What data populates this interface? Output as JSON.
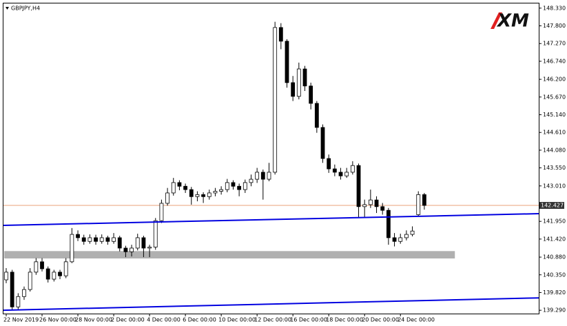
{
  "chart_data": {
    "type": "candlestick",
    "title": "GBPJPY,H4",
    "logo": "XM",
    "categories": [
      "22 Nov 2019",
      null,
      null,
      null,
      null,
      null,
      "26 Nov 00:00",
      null,
      null,
      null,
      null,
      null,
      "28 Nov 00:00",
      null,
      null,
      null,
      null,
      null,
      "2 Dec 00:00",
      null,
      null,
      null,
      null,
      null,
      "4 Dec 00:00",
      null,
      null,
      null,
      null,
      null,
      "6 Dec 00:00",
      null,
      null,
      null,
      null,
      null,
      "10 Dec 00:00",
      null,
      null,
      null,
      null,
      null,
      "12 Dec 00:00",
      null,
      null,
      null,
      null,
      null,
      "16 Dec 00:00",
      null,
      null,
      null,
      null,
      null,
      "18 Dec 00:00",
      null,
      null,
      null,
      null,
      null,
      "20 Dec 00:00",
      null,
      null,
      null,
      null,
      null,
      "24 Dec 00:00",
      null,
      null,
      null,
      null
    ],
    "open": [
      140.2,
      140.43,
      139.39,
      139.7,
      139.91,
      140.43,
      140.74,
      140.53,
      140.22,
      140.43,
      140.32,
      140.74,
      141.56,
      141.46,
      141.35,
      141.46,
      141.35,
      141.46,
      141.35,
      141.46,
      141.15,
      141.04,
      141.15,
      141.46,
      141.15,
      141.18,
      141.97,
      142.49,
      142.8,
      143.11,
      143.0,
      142.9,
      142.69,
      142.75,
      142.69,
      142.8,
      142.85,
      142.9,
      143.11,
      143.0,
      142.9,
      143.11,
      143.21,
      143.42,
      143.21,
      143.42,
      147.75,
      147.34,
      146.1,
      145.69,
      146.51,
      146.0,
      145.48,
      144.76,
      143.83,
      143.52,
      143.42,
      143.31,
      143.42,
      143.62,
      142.39,
      142.45,
      142.59,
      142.39,
      142.28,
      141.46,
      141.35,
      141.46,
      141.56,
      142.15,
      142.75
    ],
    "high": [
      140.55,
      140.5,
      139.8,
      140.0,
      140.55,
      140.85,
      140.85,
      140.6,
      140.5,
      140.5,
      140.85,
      141.75,
      141.68,
      141.55,
      141.56,
      141.55,
      141.56,
      141.52,
      141.6,
      141.52,
      141.22,
      141.25,
      141.58,
      141.52,
      141.25,
      142.05,
      142.6,
      142.95,
      143.25,
      143.18,
      143.08,
      142.98,
      142.85,
      142.82,
      142.9,
      142.95,
      143.0,
      143.22,
      143.18,
      143.08,
      143.2,
      143.35,
      143.55,
      143.5,
      143.7,
      147.92,
      147.88,
      147.4,
      146.3,
      146.7,
      146.6,
      146.1,
      145.55,
      144.85,
      143.95,
      143.65,
      143.55,
      143.55,
      143.75,
      143.68,
      142.6,
      142.9,
      142.7,
      142.5,
      142.35,
      141.6,
      141.58,
      141.68,
      141.8,
      142.85,
      142.8
    ],
    "low": [
      140.1,
      139.29,
      139.3,
      139.6,
      139.85,
      140.35,
      140.45,
      140.12,
      140.15,
      140.22,
      140.25,
      140.7,
      141.36,
      141.25,
      141.28,
      141.25,
      141.28,
      141.25,
      141.28,
      141.05,
      140.88,
      140.9,
      141.08,
      140.88,
      140.88,
      141.1,
      141.9,
      142.42,
      142.72,
      142.88,
      142.8,
      142.45,
      142.55,
      142.5,
      142.6,
      142.7,
      142.75,
      142.82,
      142.9,
      142.7,
      142.8,
      143.0,
      143.1,
      142.6,
      143.15,
      143.35,
      147.1,
      145.95,
      145.55,
      145.6,
      145.85,
      145.3,
      144.6,
      143.7,
      143.4,
      143.3,
      143.2,
      143.25,
      143.35,
      142.05,
      142.05,
      142.35,
      142.2,
      142.15,
      141.25,
      141.2,
      141.28,
      141.38,
      141.5,
      142.1,
      142.3
    ],
    "close": [
      140.43,
      139.39,
      139.7,
      139.91,
      140.43,
      140.74,
      140.53,
      140.22,
      140.43,
      140.32,
      140.74,
      141.56,
      141.46,
      141.35,
      141.46,
      141.35,
      141.46,
      141.35,
      141.46,
      141.15,
      141.04,
      141.15,
      141.46,
      141.15,
      141.18,
      141.97,
      142.49,
      142.8,
      143.11,
      143.0,
      142.9,
      142.69,
      142.75,
      142.69,
      142.8,
      142.85,
      142.9,
      143.11,
      143.0,
      142.9,
      143.11,
      143.21,
      143.42,
      143.21,
      143.42,
      147.75,
      147.34,
      146.1,
      145.69,
      146.51,
      146.0,
      145.48,
      144.76,
      143.83,
      143.52,
      143.42,
      143.31,
      143.42,
      143.62,
      142.39,
      142.45,
      142.59,
      142.39,
      142.28,
      141.46,
      141.35,
      141.46,
      141.56,
      141.66,
      142.75,
      142.427
    ],
    "up_color": "#ffffff",
    "down_color": "#000000",
    "last_price": 142.427,
    "last_price_color": "#e8a07a",
    "trendlines": [
      {
        "color": "#0000e0",
        "start": 141.83,
        "end": 142.18
      },
      {
        "color": "#0000e0",
        "start": 139.29,
        "end": 139.66
      }
    ],
    "zone": {
      "color": "#b0b0b0",
      "top": 141.06,
      "bottom": 140.84,
      "end_index": 75
    },
    "ylim": [
      139.19,
      148.47
    ],
    "yticks": [
      {
        "value": 148.33,
        "label": "148.330"
      },
      {
        "value": 147.8,
        "label": "147.800"
      },
      {
        "value": 147.27,
        "label": "147.270"
      },
      {
        "value": 146.74,
        "label": "146.740"
      },
      {
        "value": 146.2,
        "label": "146.200"
      },
      {
        "value": 145.67,
        "label": "145.670"
      },
      {
        "value": 145.14,
        "label": "145.140"
      },
      {
        "value": 144.61,
        "label": "144.610"
      },
      {
        "value": 144.08,
        "label": "144.080"
      },
      {
        "value": 143.55,
        "label": "143.550"
      },
      {
        "value": 143.01,
        "label": "143.010"
      },
      {
        "value": 141.95,
        "label": "141.950"
      },
      {
        "value": 141.42,
        "label": "141.420"
      },
      {
        "value": 140.88,
        "label": "140.880"
      },
      {
        "value": 140.35,
        "label": "140.350"
      },
      {
        "value": 139.82,
        "label": "139.820"
      },
      {
        "value": 139.29,
        "label": "139.290"
      }
    ]
  }
}
